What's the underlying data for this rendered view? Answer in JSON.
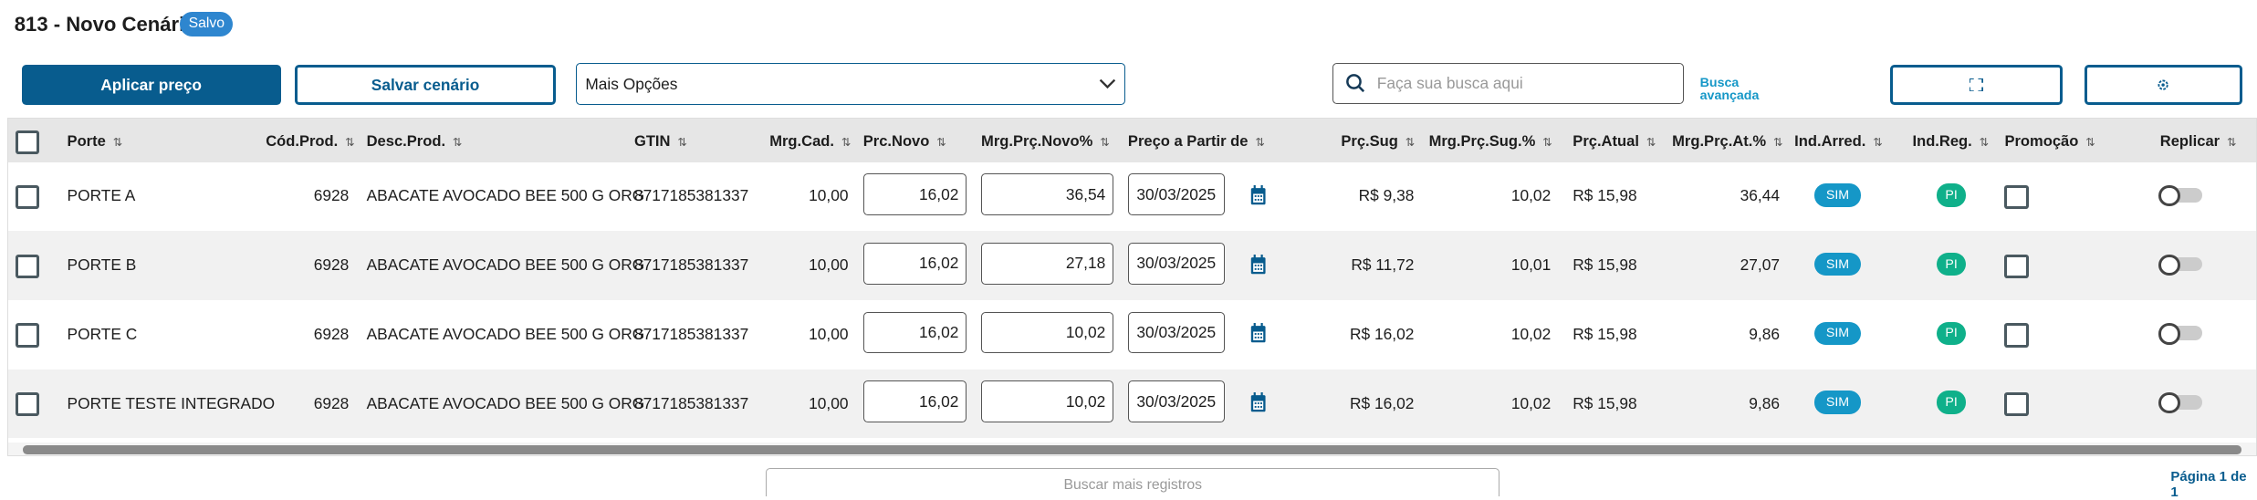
{
  "header": {
    "title": "813 - Novo Cenário",
    "status_badge": "Salvo"
  },
  "toolbar": {
    "apply_price": "Aplicar preço",
    "save_scenario": "Salvar cenário",
    "more_options": "Mais Opções",
    "search_placeholder": "Faça sua busca aqui",
    "advanced_search_line1": "Busca",
    "advanced_search_line2": "avançada",
    "fullscreen_icon": "expand-icon",
    "settings_icon": "gear-icon"
  },
  "table": {
    "columns": [
      "Porte",
      "Cód.Prod.",
      "Desc.Prod.",
      "GTIN",
      "Mrg.Cad.",
      "Prc.Novo",
      "Mrg.Prç.Novo%",
      "Preço a Partir de",
      "Prç.Sug",
      "Mrg.Prç.Sug.%",
      "Prç.Atual",
      "Mrg.Prç.At.%",
      "Ind.Arred.",
      "Ind.Reg.",
      "Promoção",
      "Replicar"
    ],
    "rows": [
      {
        "porte": "PORTE A",
        "cod": "6928",
        "desc": "ABACATE AVOCADO BEE 500 G ORG",
        "gtin": "8717185381337",
        "mrg_cad": "10,00",
        "prc_novo": "16,02",
        "mrg_novo": "36,54",
        "data": "30/03/2025",
        "prc_sug": "R$ 9,38",
        "mrg_sug": "10,02",
        "prc_atual": "R$ 15,98",
        "mrg_at": "36,44",
        "ind_arred": "SIM",
        "ind_reg": "PI",
        "promocao": false,
        "replicar": false
      },
      {
        "porte": "PORTE B",
        "cod": "6928",
        "desc": "ABACATE AVOCADO BEE 500 G ORG",
        "gtin": "8717185381337",
        "mrg_cad": "10,00",
        "prc_novo": "16,02",
        "mrg_novo": "27,18",
        "data": "30/03/2025",
        "prc_sug": "R$ 11,72",
        "mrg_sug": "10,01",
        "prc_atual": "R$ 15,98",
        "mrg_at": "27,07",
        "ind_arred": "SIM",
        "ind_reg": "PI",
        "promocao": false,
        "replicar": false
      },
      {
        "porte": "PORTE C",
        "cod": "6928",
        "desc": "ABACATE AVOCADO BEE 500 G ORG",
        "gtin": "8717185381337",
        "mrg_cad": "10,00",
        "prc_novo": "16,02",
        "mrg_novo": "10,02",
        "data": "30/03/2025",
        "prc_sug": "R$ 16,02",
        "mrg_sug": "10,02",
        "prc_atual": "R$ 15,98",
        "mrg_at": "9,86",
        "ind_arred": "SIM",
        "ind_reg": "PI",
        "promocao": false,
        "replicar": false
      },
      {
        "porte": "PORTE TESTE INTEGRADO",
        "cod": "6928",
        "desc": "ABACATE AVOCADO BEE 500 G ORG",
        "gtin": "8717185381337",
        "mrg_cad": "10,00",
        "prc_novo": "16,02",
        "mrg_novo": "10,02",
        "data": "30/03/2025",
        "prc_sug": "R$ 16,02",
        "mrg_sug": "10,02",
        "prc_atual": "R$ 15,98",
        "mrg_at": "9,86",
        "ind_arred": "SIM",
        "ind_reg": "PI",
        "promocao": false,
        "replicar": false
      }
    ]
  },
  "footer": {
    "load_more": "Buscar mais registros",
    "pagination": "Página 1 de 1"
  },
  "colors": {
    "primary": "#085c8e",
    "badge_saved": "#2e86cf",
    "sim": "#1597c7",
    "pi": "#0fb08a",
    "link": "#1597c7"
  }
}
